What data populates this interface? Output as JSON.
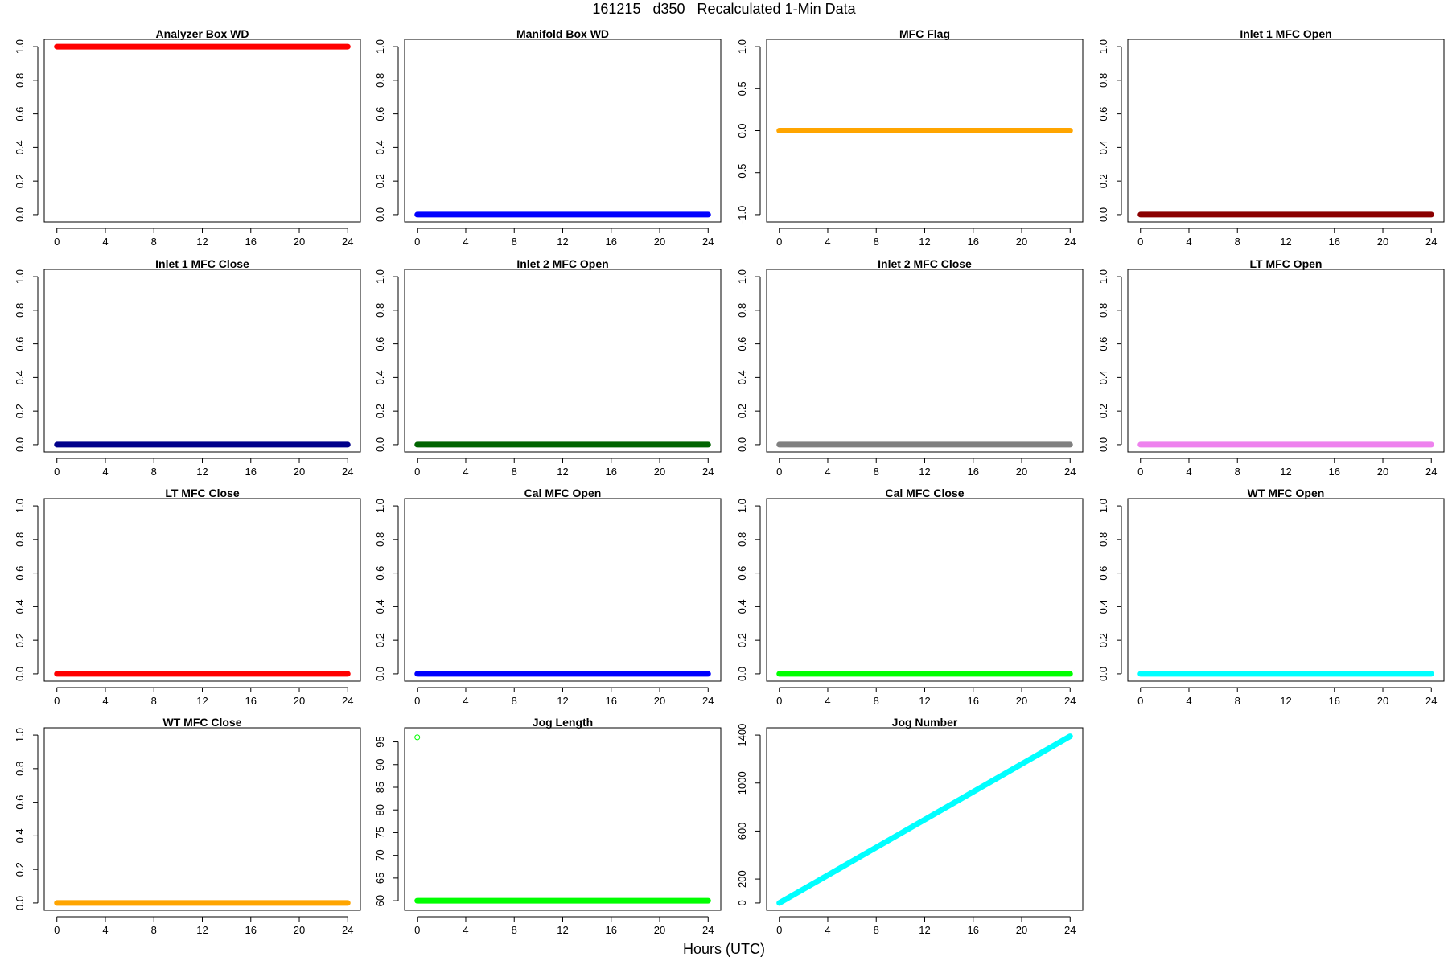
{
  "main_title": "161215   d350   Recalculated 1-Min Data",
  "x_axis_label": "Hours (UTC)",
  "chart_data": [
    {
      "type": "scatter",
      "title": "Analyzer Box WD",
      "x_range": [
        0,
        24
      ],
      "x_ticks": [
        "0",
        "4",
        "8",
        "12",
        "16",
        "20",
        "24"
      ],
      "ylim": [
        0,
        1
      ],
      "y_ticks": [
        "0.0",
        "0.2",
        "0.4",
        "0.6",
        "0.8",
        "1.0"
      ],
      "series": [
        {
          "kind": "constant",
          "x": [
            0,
            24
          ],
          "y": [
            1,
            1
          ],
          "color": "#ff0000"
        }
      ]
    },
    {
      "type": "scatter",
      "title": "Manifold Box WD",
      "x_range": [
        0,
        24
      ],
      "x_ticks": [
        "0",
        "4",
        "8",
        "12",
        "16",
        "20",
        "24"
      ],
      "ylim": [
        0,
        1
      ],
      "y_ticks": [
        "0.0",
        "0.2",
        "0.4",
        "0.6",
        "0.8",
        "1.0"
      ],
      "series": [
        {
          "kind": "constant",
          "x": [
            0,
            24
          ],
          "y": [
            0,
            0
          ],
          "color": "#0000ff"
        }
      ]
    },
    {
      "type": "scatter",
      "title": "MFC Flag",
      "x_range": [
        0,
        24
      ],
      "x_ticks": [
        "0",
        "4",
        "8",
        "12",
        "16",
        "20",
        "24"
      ],
      "ylim": [
        -1,
        1
      ],
      "y_ticks": [
        "-1.0",
        "-0.5",
        "0.0",
        "0.5",
        "1.0"
      ],
      "series": [
        {
          "kind": "constant",
          "x": [
            0,
            24
          ],
          "y": [
            0,
            0
          ],
          "color": "#ffa500"
        }
      ]
    },
    {
      "type": "scatter",
      "title": "Inlet 1 MFC Open",
      "x_range": [
        0,
        24
      ],
      "x_ticks": [
        "0",
        "4",
        "8",
        "12",
        "16",
        "20",
        "24"
      ],
      "ylim": [
        0,
        1
      ],
      "y_ticks": [
        "0.0",
        "0.2",
        "0.4",
        "0.6",
        "0.8",
        "1.0"
      ],
      "series": [
        {
          "kind": "constant",
          "x": [
            0,
            24
          ],
          "y": [
            0,
            0
          ],
          "color": "#8b0000"
        }
      ]
    },
    {
      "type": "scatter",
      "title": "Inlet 1 MFC Close",
      "x_range": [
        0,
        24
      ],
      "x_ticks": [
        "0",
        "4",
        "8",
        "12",
        "16",
        "20",
        "24"
      ],
      "ylim": [
        0,
        1
      ],
      "y_ticks": [
        "0.0",
        "0.2",
        "0.4",
        "0.6",
        "0.8",
        "1.0"
      ],
      "series": [
        {
          "kind": "constant",
          "x": [
            0,
            24
          ],
          "y": [
            0,
            0
          ],
          "color": "#00008b"
        }
      ]
    },
    {
      "type": "scatter",
      "title": "Inlet 2 MFC Open",
      "x_range": [
        0,
        24
      ],
      "x_ticks": [
        "0",
        "4",
        "8",
        "12",
        "16",
        "20",
        "24"
      ],
      "ylim": [
        0,
        1
      ],
      "y_ticks": [
        "0.0",
        "0.2",
        "0.4",
        "0.6",
        "0.8",
        "1.0"
      ],
      "series": [
        {
          "kind": "constant",
          "x": [
            0,
            24
          ],
          "y": [
            0,
            0
          ],
          "color": "#006400"
        }
      ]
    },
    {
      "type": "scatter",
      "title": "Inlet 2 MFC Close",
      "x_range": [
        0,
        24
      ],
      "x_ticks": [
        "0",
        "4",
        "8",
        "12",
        "16",
        "20",
        "24"
      ],
      "ylim": [
        0,
        1
      ],
      "y_ticks": [
        "0.0",
        "0.2",
        "0.4",
        "0.6",
        "0.8",
        "1.0"
      ],
      "series": [
        {
          "kind": "constant",
          "x": [
            0,
            24
          ],
          "y": [
            0,
            0
          ],
          "color": "#808080"
        }
      ]
    },
    {
      "type": "scatter",
      "title": "LT MFC Open",
      "x_range": [
        0,
        24
      ],
      "x_ticks": [
        "0",
        "4",
        "8",
        "12",
        "16",
        "20",
        "24"
      ],
      "ylim": [
        0,
        1
      ],
      "y_ticks": [
        "0.0",
        "0.2",
        "0.4",
        "0.6",
        "0.8",
        "1.0"
      ],
      "series": [
        {
          "kind": "constant",
          "x": [
            0,
            24
          ],
          "y": [
            0,
            0
          ],
          "color": "#ee82ee"
        }
      ]
    },
    {
      "type": "scatter",
      "title": "LT MFC Close",
      "x_range": [
        0,
        24
      ],
      "x_ticks": [
        "0",
        "4",
        "8",
        "12",
        "16",
        "20",
        "24"
      ],
      "ylim": [
        0,
        1
      ],
      "y_ticks": [
        "0.0",
        "0.2",
        "0.4",
        "0.6",
        "0.8",
        "1.0"
      ],
      "series": [
        {
          "kind": "constant",
          "x": [
            0,
            24
          ],
          "y": [
            0,
            0
          ],
          "color": "#ff0000"
        }
      ]
    },
    {
      "type": "scatter",
      "title": "Cal MFC Open",
      "x_range": [
        0,
        24
      ],
      "x_ticks": [
        "0",
        "4",
        "8",
        "12",
        "16",
        "20",
        "24"
      ],
      "ylim": [
        0,
        1
      ],
      "y_ticks": [
        "0.0",
        "0.2",
        "0.4",
        "0.6",
        "0.8",
        "1.0"
      ],
      "series": [
        {
          "kind": "constant",
          "x": [
            0,
            24
          ],
          "y": [
            0,
            0
          ],
          "color": "#0000ff"
        }
      ]
    },
    {
      "type": "scatter",
      "title": "Cal MFC Close",
      "x_range": [
        0,
        24
      ],
      "x_ticks": [
        "0",
        "4",
        "8",
        "12",
        "16",
        "20",
        "24"
      ],
      "ylim": [
        0,
        1
      ],
      "y_ticks": [
        "0.0",
        "0.2",
        "0.4",
        "0.6",
        "0.8",
        "1.0"
      ],
      "series": [
        {
          "kind": "constant",
          "x": [
            0,
            24
          ],
          "y": [
            0,
            0
          ],
          "color": "#00ff00"
        }
      ]
    },
    {
      "type": "scatter",
      "title": "WT MFC Open",
      "x_range": [
        0,
        24
      ],
      "x_ticks": [
        "0",
        "4",
        "8",
        "12",
        "16",
        "20",
        "24"
      ],
      "ylim": [
        0,
        1
      ],
      "y_ticks": [
        "0.0",
        "0.2",
        "0.4",
        "0.6",
        "0.8",
        "1.0"
      ],
      "series": [
        {
          "kind": "constant",
          "x": [
            0,
            24
          ],
          "y": [
            0,
            0
          ],
          "color": "#00ffff"
        }
      ]
    },
    {
      "type": "scatter",
      "title": "WT MFC Close",
      "x_range": [
        0,
        24
      ],
      "x_ticks": [
        "0",
        "4",
        "8",
        "12",
        "16",
        "20",
        "24"
      ],
      "ylim": [
        0,
        1
      ],
      "y_ticks": [
        "0.0",
        "0.2",
        "0.4",
        "0.6",
        "0.8",
        "1.0"
      ],
      "series": [
        {
          "kind": "constant",
          "x": [
            0,
            24
          ],
          "y": [
            0,
            0
          ],
          "color": "#ffa500"
        }
      ]
    },
    {
      "type": "scatter",
      "title": "Jog Length",
      "x_range": [
        0,
        24
      ],
      "x_ticks": [
        "0",
        "4",
        "8",
        "12",
        "16",
        "20",
        "24"
      ],
      "ylim": [
        59.5,
        96.5
      ],
      "y_ticks": [
        "60",
        "65",
        "70",
        "75",
        "80",
        "85",
        "90",
        "95"
      ],
      "series": [
        {
          "kind": "constant",
          "x": [
            0,
            24
          ],
          "y": [
            60,
            60
          ],
          "color": "#00ff00"
        },
        {
          "kind": "points",
          "x": [
            0
          ],
          "y": [
            96
          ],
          "color": "#00ff00"
        }
      ]
    },
    {
      "type": "scatter",
      "title": "Jog Number",
      "x_range": [
        0,
        24
      ],
      "x_ticks": [
        "0",
        "4",
        "8",
        "12",
        "16",
        "20",
        "24"
      ],
      "ylim": [
        0,
        1400
      ],
      "y_ticks": [
        "0",
        "200",
        "600",
        "1000",
        "1400"
      ],
      "series": [
        {
          "kind": "linear",
          "x": [
            0,
            24
          ],
          "y": [
            0,
            1390
          ],
          "color": "#00ffff"
        }
      ]
    }
  ]
}
